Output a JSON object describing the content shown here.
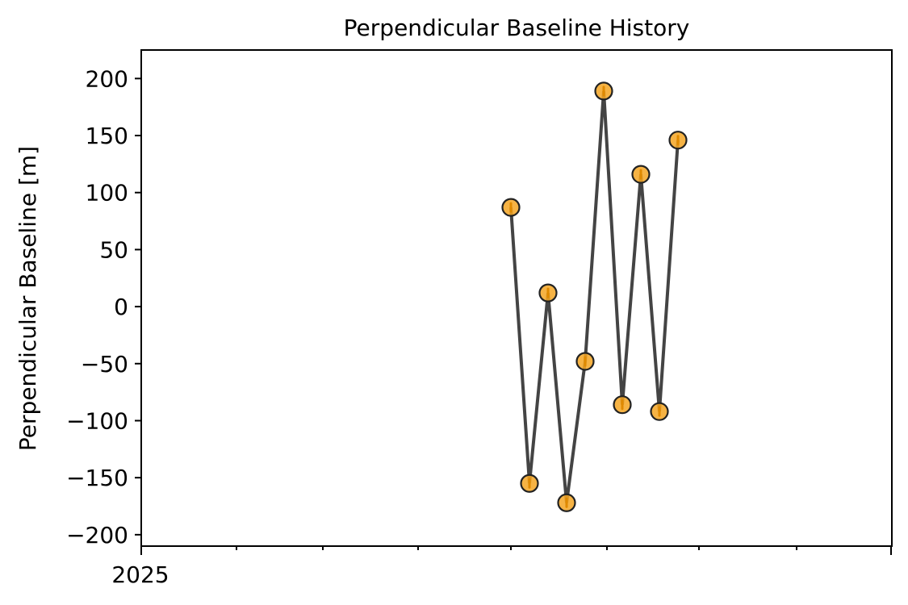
{
  "chart_data": {
    "type": "line",
    "title": "Perpendicular Baseline History",
    "xlabel": "",
    "ylabel": "Perpendicular Baseline [m]",
    "x_tick_labels": [
      "2025"
    ],
    "ylim": [
      -210,
      225
    ],
    "y_ticks": [
      200,
      150,
      100,
      50,
      0,
      -50,
      -100,
      -150,
      -200
    ],
    "y_tick_labels": [
      "200",
      "150",
      "100",
      "50",
      "0",
      "−50",
      "−100",
      "−150",
      "−200"
    ],
    "grid": false,
    "series": [
      {
        "marker_color": "#f5a623",
        "line_color": "#444444",
        "values": [
          87,
          -155,
          12,
          -172,
          -48,
          189,
          -86,
          116,
          -92,
          146
        ]
      }
    ]
  }
}
